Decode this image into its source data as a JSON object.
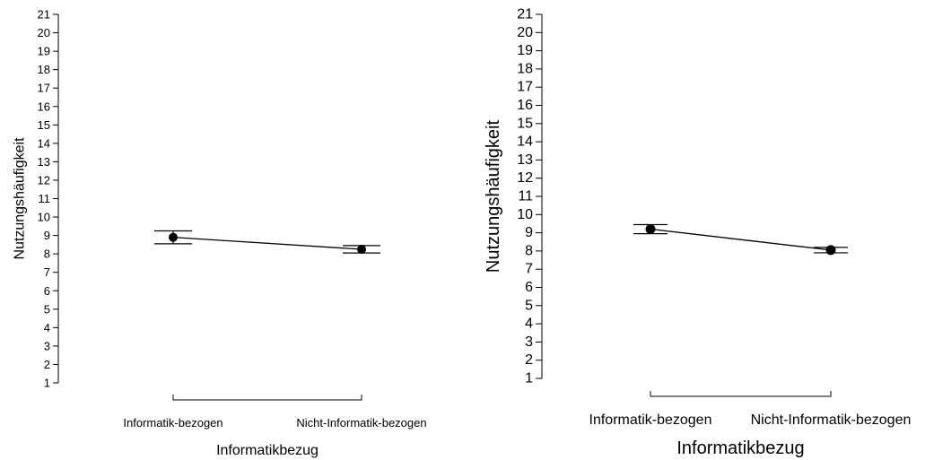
{
  "chart_data": [
    {
      "type": "line",
      "title": "",
      "xlabel": "Informatikbezug",
      "ylabel": "Nutzungshäufigkeit",
      "ylim": [
        1,
        21
      ],
      "yticks": [
        1,
        2,
        3,
        4,
        5,
        6,
        7,
        8,
        9,
        10,
        11,
        12,
        13,
        14,
        15,
        16,
        17,
        18,
        19,
        20,
        21
      ],
      "categories": [
        "Informatik-bezogen",
        "Nicht-Informatik-bezogen"
      ],
      "series": [
        {
          "values": [
            8.9,
            8.25
          ],
          "error_low": [
            8.55,
            8.05
          ],
          "error_high": [
            9.25,
            8.45
          ]
        }
      ],
      "grid": false,
      "legend": "none"
    },
    {
      "type": "line",
      "title": "",
      "xlabel": "Informatikbezug",
      "ylabel": "Nutzungshäufigkeit",
      "ylim": [
        1,
        21
      ],
      "yticks": [
        1,
        2,
        3,
        4,
        5,
        6,
        7,
        8,
        9,
        10,
        11,
        12,
        13,
        14,
        15,
        16,
        17,
        18,
        19,
        20,
        21
      ],
      "categories": [
        "Informatik-bezogen",
        "Nicht-Informatik-bezogen"
      ],
      "series": [
        {
          "values": [
            9.2,
            8.05
          ],
          "error_low": [
            8.95,
            7.9
          ],
          "error_high": [
            9.45,
            8.2
          ]
        }
      ],
      "grid": false,
      "legend": "none"
    }
  ]
}
